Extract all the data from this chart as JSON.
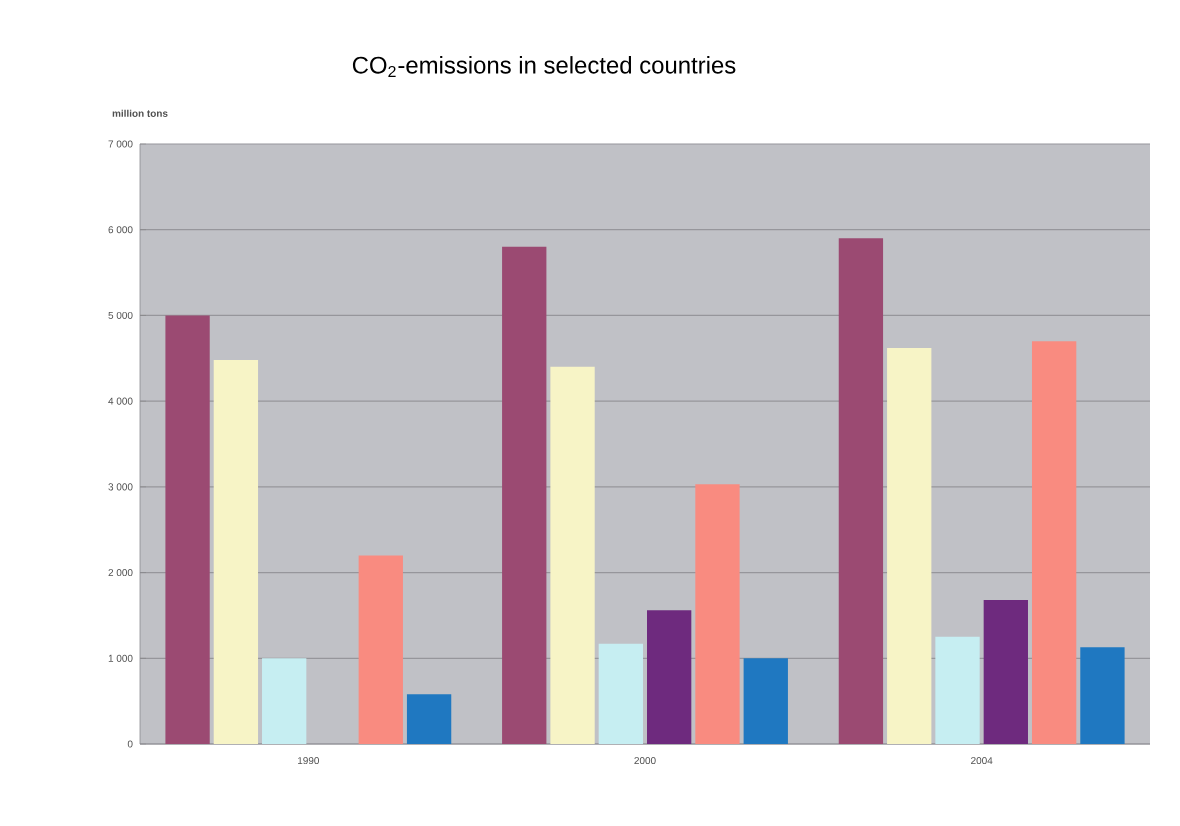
{
  "chart_data": {
    "type": "bar",
    "title": "CO$_{2}$-emissions in selected countries",
    "ylabel": "million tons",
    "categories": [
      "1990",
      "2000",
      "2004"
    ],
    "series": [
      {
        "color": "#9b4a72",
        "values": [
          5000,
          5800,
          5900
        ]
      },
      {
        "color": "#f7f4c6",
        "values": [
          4480,
          4400,
          4620
        ]
      },
      {
        "color": "#c6eef2",
        "values": [
          1000,
          1170,
          1250
        ]
      },
      {
        "color": "#6e2a7e",
        "values": [
          null,
          1560,
          1680
        ]
      },
      {
        "color": "#f98b80",
        "values": [
          2200,
          3030,
          4700
        ]
      },
      {
        "color": "#1f78c1",
        "values": [
          580,
          1000,
          1130
        ]
      }
    ],
    "ylim": [
      0,
      7000
    ],
    "yticks": [
      0,
      {
        "value": 1000,
        "label": "1 000"
      },
      {
        "value": 2000,
        "label": "2 000"
      },
      {
        "value": 3000,
        "label": "3 000"
      },
      {
        "value": 4000,
        "label": "4 000"
      },
      {
        "value": 5000,
        "label": "5 000"
      },
      {
        "value": 6000,
        "label": "6 000"
      },
      {
        "value": 7000,
        "label": "7 000"
      }
    ],
    "grid": "y"
  }
}
